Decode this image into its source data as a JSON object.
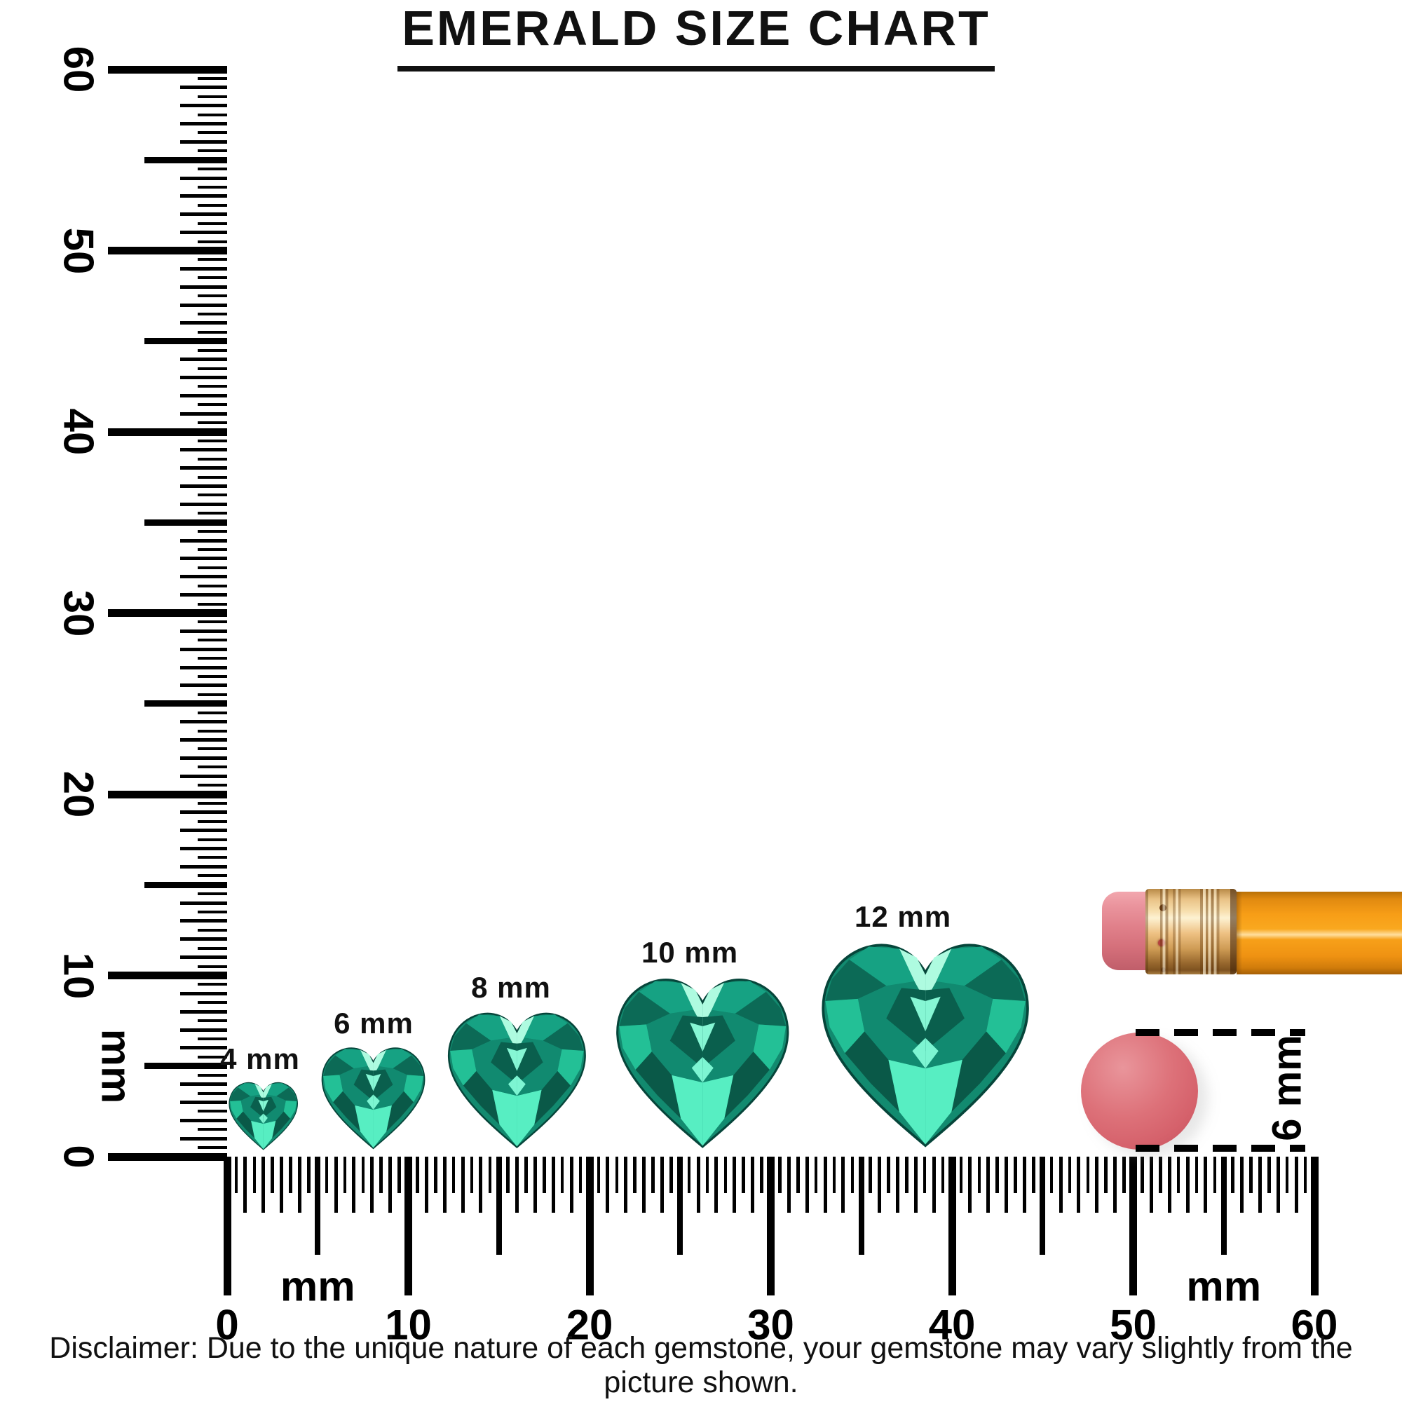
{
  "title": "EMERALD SIZE CHART",
  "rulers": {
    "unit_label": "mm",
    "horizontal": {
      "min_mm": 0,
      "max_mm": 60,
      "step_mm": 0.5,
      "major_labels": [
        "0",
        "10",
        "20",
        "30",
        "40",
        "50",
        "60"
      ],
      "unit_label_positions_mm": [
        5,
        55
      ]
    },
    "vertical": {
      "min_mm": 0,
      "max_mm": 60,
      "step_mm": 0.5,
      "major_labels": [
        "0",
        "10",
        "20",
        "30",
        "40",
        "50",
        "60"
      ],
      "unit_label_positions_mm": [
        5
      ]
    }
  },
  "gems": {
    "gem_type": "emerald",
    "cut": "heart",
    "items": [
      {
        "label": "4 mm",
        "mm": 4
      },
      {
        "label": "6 mm",
        "mm": 6
      },
      {
        "label": "8 mm",
        "mm": 8
      },
      {
        "label": "10 mm",
        "mm": 10
      },
      {
        "label": "12 mm",
        "mm": 12
      }
    ]
  },
  "reference_objects": {
    "pencil": {
      "name": "pencil with pink eraser and gold ferrule"
    },
    "eraser_circle": {
      "diameter_label": "6 mm"
    }
  },
  "disclaimer": "Disclaimer: Due to the unique nature of each gemstone, your gemstone may vary slightly from the picture shown.",
  "colors": {
    "ink": "#000000",
    "emerald_base": "#128a6f",
    "emerald_dark": "#0b6150",
    "emerald_deep": "#084e40",
    "emerald_bright": "#2ed3a6",
    "emerald_light": "#57eec2",
    "emerald_pale": "#aefbe0",
    "pencil_body": "#f79e17",
    "pencil_ferrule": "#eec183",
    "pencil_eraser": "#e0808a",
    "eraser_circle": "#d5616b"
  }
}
